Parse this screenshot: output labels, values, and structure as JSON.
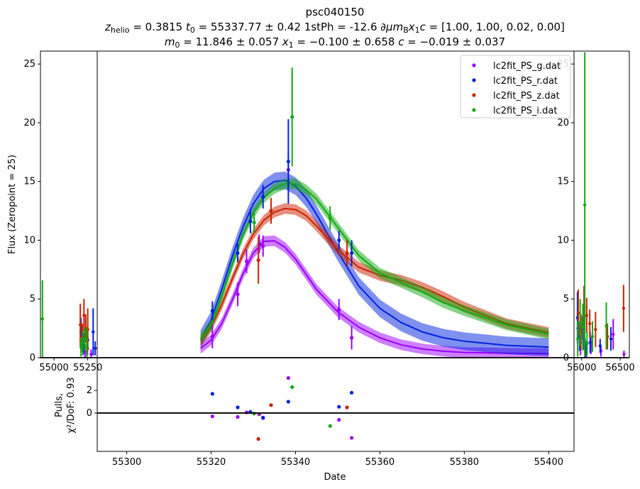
{
  "chart_data": {
    "type": "scatter",
    "title": "psc040150",
    "subtitle_line1": "z_helio = 0.3815 t0 = 55337.77 ± 0.42 1stPh = -12.6 ∂μm_B x1 c = [1.00, 1.00, 0.02, 0.00]",
    "subtitle_line2": "m0 = 11.846 ± 0.057 x1 = −0.100 ± 0.658 c = −0.019 ± 0.037",
    "title_parts": {
      "line1": [
        {
          "t": "z",
          "style": "italic"
        },
        {
          "t": "helio",
          "style": "sub"
        },
        {
          "t": " = 0.3815 "
        },
        {
          "t": "t",
          "style": "italic"
        },
        {
          "t": "0",
          "style": "sub"
        },
        {
          "t": " = 55337.77 ± 0.42 1stPh = -12.6 "
        },
        {
          "t": "∂μm",
          "style": "italic"
        },
        {
          "t": "B",
          "style": "sub"
        },
        {
          "t": "x",
          "style": "italic"
        },
        {
          "t": "1",
          "style": "sub"
        },
        {
          "t": "c",
          "style": "italic"
        },
        {
          "t": " = [1.00,  1.00,  0.02,  0.00]"
        }
      ],
      "line2": [
        {
          "t": "m",
          "style": "italic"
        },
        {
          "t": "0",
          "style": "sub"
        },
        {
          "t": " = 11.846 ± 0.057 "
        },
        {
          "t": "x",
          "style": "italic"
        },
        {
          "t": "1",
          "style": "sub"
        },
        {
          "t": " = −0.100 ± 0.658 "
        },
        {
          "t": "c",
          "style": "italic"
        },
        {
          "t": " = −0.019 ± 0.037"
        }
      ]
    },
    "ylabel": "Flux (Zeropoint = 25)",
    "pulls_ylabel_line1": "Pulls,",
    "pulls_ylabel_line2": "χ²/DoF: 0.93",
    "xlabel": "Date",
    "xlim": [
      55293,
      55406
    ],
    "ylim": [
      0,
      26.1
    ],
    "pulls_ylim": [
      -3.4,
      4.9
    ],
    "main_yticks": [
      0,
      5,
      10,
      15,
      20,
      25
    ],
    "main_xticks": [
      55300,
      55320,
      55340,
      55360,
      55380,
      55400
    ],
    "pulls_yticks": [
      0,
      2
    ],
    "left_inset": {
      "xlim": [
        54900,
        55320
      ],
      "xticks": [
        55000,
        55250
      ],
      "ylim": [
        0,
        26.1
      ]
    },
    "right_inset": {
      "xlim": [
        55900,
        56620
      ],
      "xticks": [
        56000,
        56500
      ],
      "ylim": [
        0,
        26.1
      ],
      "yticks": [
        0,
        5,
        10,
        15,
        20,
        25
      ]
    },
    "grid": false,
    "legend_position": "top-right",
    "series": [
      {
        "name": "lc2fit_PS_g.dat",
        "color": "#9b00ff",
        "x": [
          55320.3,
          55326.3,
          55328.4,
          55331.4,
          55332.3,
          55338.3,
          55350.3,
          55353.3
        ],
        "y": [
          1.8,
          5.4,
          8.2,
          9.7,
          9.5,
          16.0,
          4.1,
          1.7
        ],
        "err": [
          1.0,
          1.0,
          1.0,
          0.8,
          0.9,
          1.4,
          0.9,
          1.0
        ],
        "pulls": [
          -0.3,
          -0.35,
          0.05,
          -0.1,
          -0.45,
          3.1,
          -0.6,
          -2.2
        ],
        "model_x": [
          55317.5,
          55320,
          55322.5,
          55325,
          55327.5,
          55330,
          55332.5,
          55335,
          55337.5,
          55340,
          55342.5,
          55345,
          55350,
          55355,
          55360,
          55365,
          55370,
          55375,
          55380,
          55390,
          55400
        ],
        "model_y": [
          0.8,
          1.5,
          2.9,
          4.9,
          7.1,
          8.9,
          9.9,
          9.95,
          9.4,
          8.4,
          7.1,
          5.8,
          3.9,
          2.6,
          1.7,
          1.1,
          0.75,
          0.55,
          0.45,
          0.38,
          0.35
        ],
        "model_band": 0.45,
        "inset_left": [
          [
            55200,
            1.5,
            0.8
          ],
          [
            55215,
            0.7,
            0.5
          ],
          [
            55230,
            0.5,
            0.5
          ],
          [
            55248,
            0.8,
            0.6
          ],
          [
            55275,
            0.3,
            0.4
          ]
        ],
        "inset_right": [
          [
            55950,
            2.5,
            2.0
          ],
          [
            55985,
            1.3,
            1.1
          ],
          [
            56025,
            1.6,
            0.9
          ],
          [
            56060,
            0.6,
            0.8
          ],
          [
            56120,
            1.0,
            0.7
          ],
          [
            56250,
            0.6,
            0.5
          ],
          [
            56410,
            2.0,
            1.3
          ],
          [
            56550,
            0.3,
            0.3
          ]
        ]
      },
      {
        "name": "lc2fit_PS_r.dat",
        "color": "#0022dd",
        "x": [
          55320.3,
          55326.3,
          55329.3,
          55332.3,
          55338.3,
          55350.3,
          55353.3
        ],
        "y": [
          4.0,
          8.9,
          11.6,
          13.7,
          16.7,
          10.0,
          8.9
        ],
        "err": [
          0.8,
          0.8,
          1.0,
          1.0,
          3.6,
          0.8,
          1.1
        ],
        "pulls": [
          1.7,
          0.5,
          0.1,
          -0.4,
          1.0,
          0.55,
          1.8
        ],
        "model_x": [
          55317.5,
          55320,
          55322.5,
          55325,
          55327.5,
          55330,
          55332.5,
          55335,
          55337.5,
          55340,
          55342.5,
          55345,
          55350,
          55355,
          55360,
          55365,
          55370,
          55375,
          55380,
          55390,
          55400
        ],
        "model_y": [
          1.6,
          3.2,
          5.8,
          8.6,
          11.1,
          13.1,
          14.4,
          15.0,
          15.1,
          14.6,
          13.6,
          12.2,
          9.0,
          6.1,
          4.2,
          3.0,
          2.2,
          1.7,
          1.4,
          1.05,
          0.9
        ],
        "model_band": 0.75,
        "inset_left": [
          [
            55200,
            2.2,
            1.2
          ],
          [
            55218,
            1.2,
            0.9
          ],
          [
            55235,
            2.4,
            1.0
          ],
          [
            55250,
            1.5,
            0.6
          ],
          [
            55290,
            2.2,
            2.0
          ],
          [
            55305,
            0.8,
            0.6
          ]
        ],
        "inset_right": [
          [
            55945,
            3.4,
            2.2
          ],
          [
            55975,
            1.8,
            1.2
          ],
          [
            56010,
            2.5,
            1.0
          ],
          [
            56045,
            0.8,
            0.8
          ],
          [
            56110,
            1.3,
            0.9
          ],
          [
            56240,
            1.0,
            0.6
          ],
          [
            56380,
            1.6,
            1.0
          ]
        ]
      },
      {
        "name": "lc2fit_PS_z.dat",
        "color": "#cc2200",
        "x": [
          55331.2,
          55334.2,
          55352.2
        ],
        "y": [
          8.3,
          12.5,
          8.9
        ],
        "err": [
          2.0,
          1.1,
          1.1
        ],
        "pulls": [
          -2.3,
          0.7,
          0.5
        ],
        "model_x": [
          55317.5,
          55320,
          55322.5,
          55325,
          55327.5,
          55330,
          55332.5,
          55335,
          55337.5,
          55340,
          55342.5,
          55345,
          55350,
          55355,
          55360,
          55365,
          55370,
          55375,
          55380,
          55390,
          55400
        ],
        "model_y": [
          1.4,
          2.6,
          4.5,
          6.7,
          8.8,
          10.5,
          11.7,
          12.4,
          12.7,
          12.6,
          12.1,
          11.2,
          9.2,
          7.7,
          7.0,
          6.6,
          6.0,
          5.2,
          4.3,
          2.9,
          2.15
        ],
        "model_band": 0.45,
        "inset_left": [
          [
            55195,
            2.8,
            1.8
          ],
          [
            55210,
            1.7,
            1.2
          ],
          [
            55222,
            3.6,
            1.4
          ],
          [
            55235,
            2.5,
            1.2
          ],
          [
            55250,
            2.4,
            1.8
          ],
          [
            55340,
            0.4,
            0.4
          ],
          [
            55440,
            0.3,
            0.4
          ]
        ],
        "inset_right": [
          [
            55955,
            3.8,
            2.0
          ],
          [
            55990,
            2.2,
            1.5
          ],
          [
            56030,
            4.3,
            1.8
          ],
          [
            56065,
            3.6,
            1.5
          ],
          [
            56105,
            2.9,
            1.2
          ],
          [
            56180,
            2.4,
            1.5
          ],
          [
            56335,
            1.8,
            1.1
          ],
          [
            56545,
            4.2,
            2.0
          ]
        ]
      },
      {
        "name": "lc2fit_PS_i.dat",
        "color": "#11aa11",
        "x": [
          55330.2,
          55339.2,
          55348.2
        ],
        "y": [
          11.5,
          20.5,
          11.9
        ],
        "err": [
          0.9,
          4.2,
          1.0
        ],
        "pulls": [
          -0.05,
          2.3,
          -1.15
        ],
        "model_x": [
          55317.5,
          55320,
          55322.5,
          55325,
          55327.5,
          55330,
          55332.5,
          55335,
          55337.5,
          55340,
          55342.5,
          55345,
          55350,
          55355,
          55360,
          55365,
          55370,
          55375,
          55380,
          55390,
          55400
        ],
        "model_y": [
          1.6,
          2.8,
          5.2,
          7.9,
          10.4,
          12.3,
          13.6,
          14.4,
          14.8,
          14.8,
          14.3,
          13.5,
          11.1,
          8.7,
          7.2,
          6.4,
          5.6,
          4.7,
          4.0,
          2.8,
          2.0
        ],
        "model_band": 0.45,
        "inset_left": [
          [
            54915,
            3.3,
            3.3
          ],
          [
            55200,
            0.9,
            0.8
          ],
          [
            55213,
            1.3,
            1.0
          ],
          [
            55228,
            1.6,
            1.0
          ],
          [
            55243,
            1.0,
            1.5
          ]
        ],
        "inset_right": [
          [
            55948,
            1.6,
            1.5
          ],
          [
            55980,
            3.0,
            2.0
          ],
          [
            56015,
            2.6,
            2.0
          ],
          [
            56040,
            13.0,
            13.0
          ],
          [
            56070,
            1.2,
            1.0
          ],
          [
            56140,
            1.8,
            1.3
          ],
          [
            56320,
            2.7,
            2.0
          ]
        ]
      }
    ]
  }
}
